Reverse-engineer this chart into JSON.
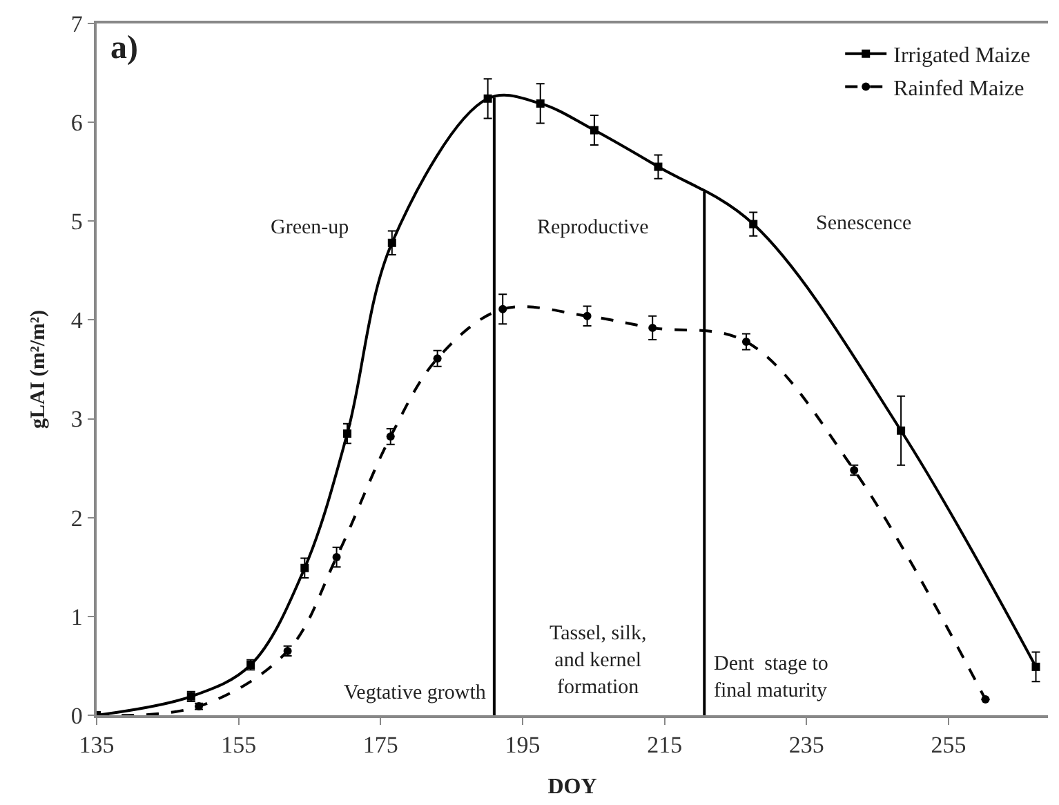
{
  "chart_data": {
    "type": "line",
    "xlabel": "DOY",
    "ylabel": "gLAI (m²/m²)",
    "xlim": [
      135,
      269
    ],
    "xticks": [
      135,
      155,
      175,
      195,
      215,
      235,
      255
    ],
    "ylim": [
      0,
      7
    ],
    "yticks": [
      0,
      1,
      2,
      3,
      4,
      5,
      6,
      7
    ],
    "legend": "top right",
    "marker": "square",
    "series": [
      {
        "name": "Irrigated Maize",
        "color": "#000000",
        "line_style": "solid",
        "x": [
          135,
          148.3,
          156.7,
          164.3,
          170.3,
          176.6,
          190.1,
          197.5,
          205.1,
          214.1,
          227.5,
          248.3,
          267.3
        ],
        "values": [
          0,
          0.19,
          0.51,
          1.49,
          2.85,
          4.78,
          6.24,
          6.19,
          5.92,
          5.55,
          4.97,
          2.88,
          0.49
        ],
        "errors": [
          null,
          0.05,
          0.05,
          0.1,
          0.1,
          0.12,
          0.2,
          0.2,
          0.15,
          0.12,
          0.12,
          0.35,
          0.15
        ]
      },
      {
        "name": "Rainfed Maize",
        "color": "#000000",
        "line_style": "dashed",
        "marker": "circle",
        "x": [
          135,
          149.4,
          161.9,
          168.8,
          176.4,
          183.0,
          192.2,
          204.1,
          213.3,
          226.5,
          241.7,
          260.2
        ],
        "values": [
          0,
          0.09,
          0.65,
          1.6,
          2.82,
          3.61,
          4.11,
          4.04,
          3.92,
          3.78,
          2.48,
          0.16
        ],
        "errors": [
          null,
          0.03,
          0.05,
          0.1,
          0.08,
          0.08,
          0.15,
          0.1,
          0.12,
          0.08,
          0.05,
          null
        ]
      },
      {
        "type": "line",
        "color": "#000000",
        "line_style": "solid",
        "marker": "none",
        "x": [
          191,
          191
        ],
        "values": [
          0,
          6.25
        ]
      },
      {
        "type": "line",
        "color": "#000000",
        "line_style": "solid",
        "marker": "none",
        "x": [
          220.6,
          220.6
        ],
        "values": [
          0,
          5.3
        ]
      }
    ],
    "annotations": [
      "a)",
      "Green-up",
      "Reproductive",
      "Senescence",
      "Vegtative growth",
      "Tassel, silk,\nand kernel\nformation",
      "Dent  stage to\nfinal maturity"
    ]
  }
}
